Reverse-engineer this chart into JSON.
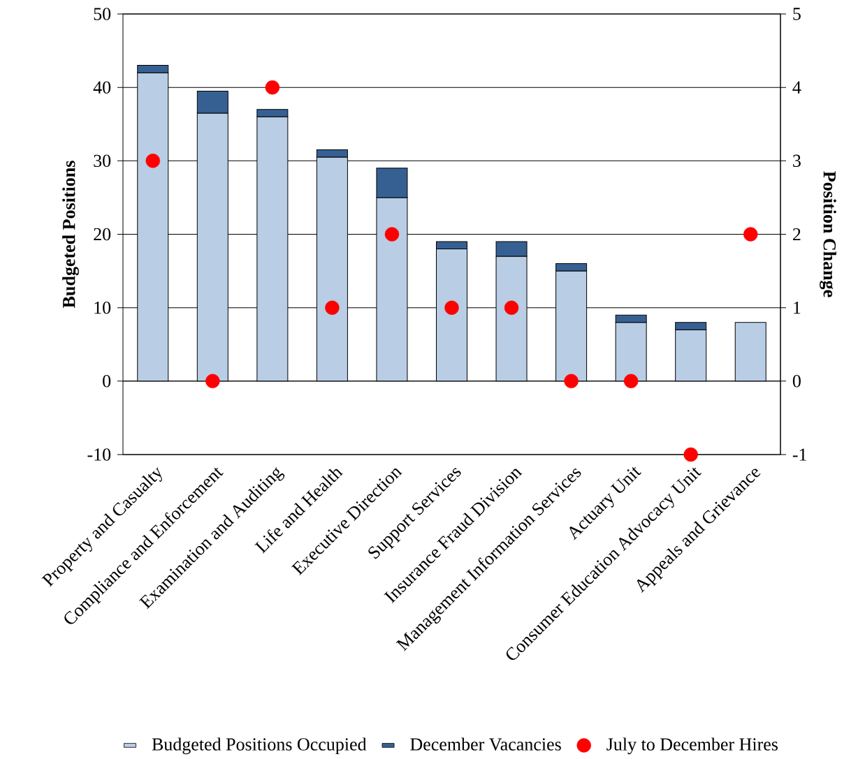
{
  "chart_data": {
    "type": "bar",
    "stacked": true,
    "categories": [
      "Property and Casualty",
      "Compliance and Enforcement",
      "Examination and Auditing",
      "Life and Health",
      "Executive Direction",
      "Support Services",
      "Insurance Fraud Division",
      "Management Information Services",
      "Actuary Unit",
      "Consumer Education Advocacy Unit",
      "Appeals and Grievance"
    ],
    "series": [
      {
        "name": "Budgeted Positions Occupied",
        "color": "#b9cde5",
        "values": [
          42,
          36.5,
          36,
          30.5,
          25,
          18,
          17,
          15,
          8,
          7,
          8
        ]
      },
      {
        "name": "December Vacancies",
        "color": "#376092",
        "values": [
          1,
          3,
          1,
          1,
          4,
          1,
          2,
          1,
          1,
          1,
          0
        ]
      },
      {
        "name": "July to December Hires",
        "type": "scatter",
        "axis": "y2",
        "color": "#ff0000",
        "values": [
          3,
          0,
          4,
          1,
          2,
          1,
          1,
          0,
          0,
          -1,
          2
        ]
      }
    ],
    "ylabel": "Budgeted Positions",
    "y2label": "Position Change",
    "ylim": [
      -10,
      50
    ],
    "yticks": [
      -10,
      0,
      10,
      20,
      30,
      40,
      50
    ],
    "y2lim": [
      -1,
      5
    ],
    "y2ticks": [
      -1,
      0,
      1,
      2,
      3,
      4,
      5
    ],
    "grid": "y",
    "legend": "bottom"
  }
}
